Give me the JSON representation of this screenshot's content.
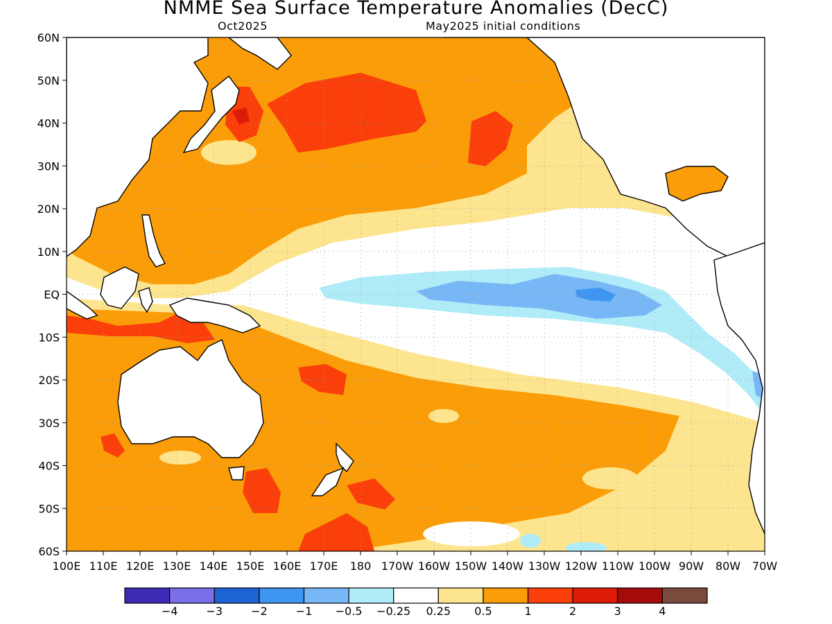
{
  "header": {
    "title": "NMME Sea Surface Temperature Anomalies (DecC)",
    "lead_month": "Oct2025",
    "init_conditions": "May2025 initial conditions"
  },
  "axes": {
    "lat_labels": [
      "60N",
      "50N",
      "40N",
      "30N",
      "20N",
      "10N",
      "EQ",
      "10S",
      "20S",
      "30S",
      "40S",
      "50S",
      "60S"
    ],
    "lon_labels": [
      "100E",
      "110E",
      "120E",
      "130E",
      "140E",
      "150E",
      "160E",
      "170E",
      "180",
      "170W",
      "160W",
      "150W",
      "140W",
      "130W",
      "120W",
      "110W",
      "100W",
      "90W",
      "80W",
      "70W"
    ],
    "lat_range": [
      -60,
      60
    ],
    "lon_range_east": [
      100,
      290
    ]
  },
  "colorbar": {
    "colors": [
      "#3d2bb5",
      "#7b6fe8",
      "#1f64d4",
      "#3f96f0",
      "#78b7f6",
      "#b0ecf8",
      "#ffffff",
      "#fde58f",
      "#fb9d08",
      "#fb3f0a",
      "#de1b08",
      "#a50b0b",
      "#7a4a3c"
    ],
    "labels": [
      "−4",
      "−3",
      "−2",
      "−1",
      "−0.5",
      "−0.25",
      "0.25",
      "0.5",
      "1",
      "2",
      "3",
      "4"
    ]
  },
  "map_colors": {
    "land": "#ffffff",
    "coast": "#000000",
    "grid": "#9a9a9a"
  }
}
